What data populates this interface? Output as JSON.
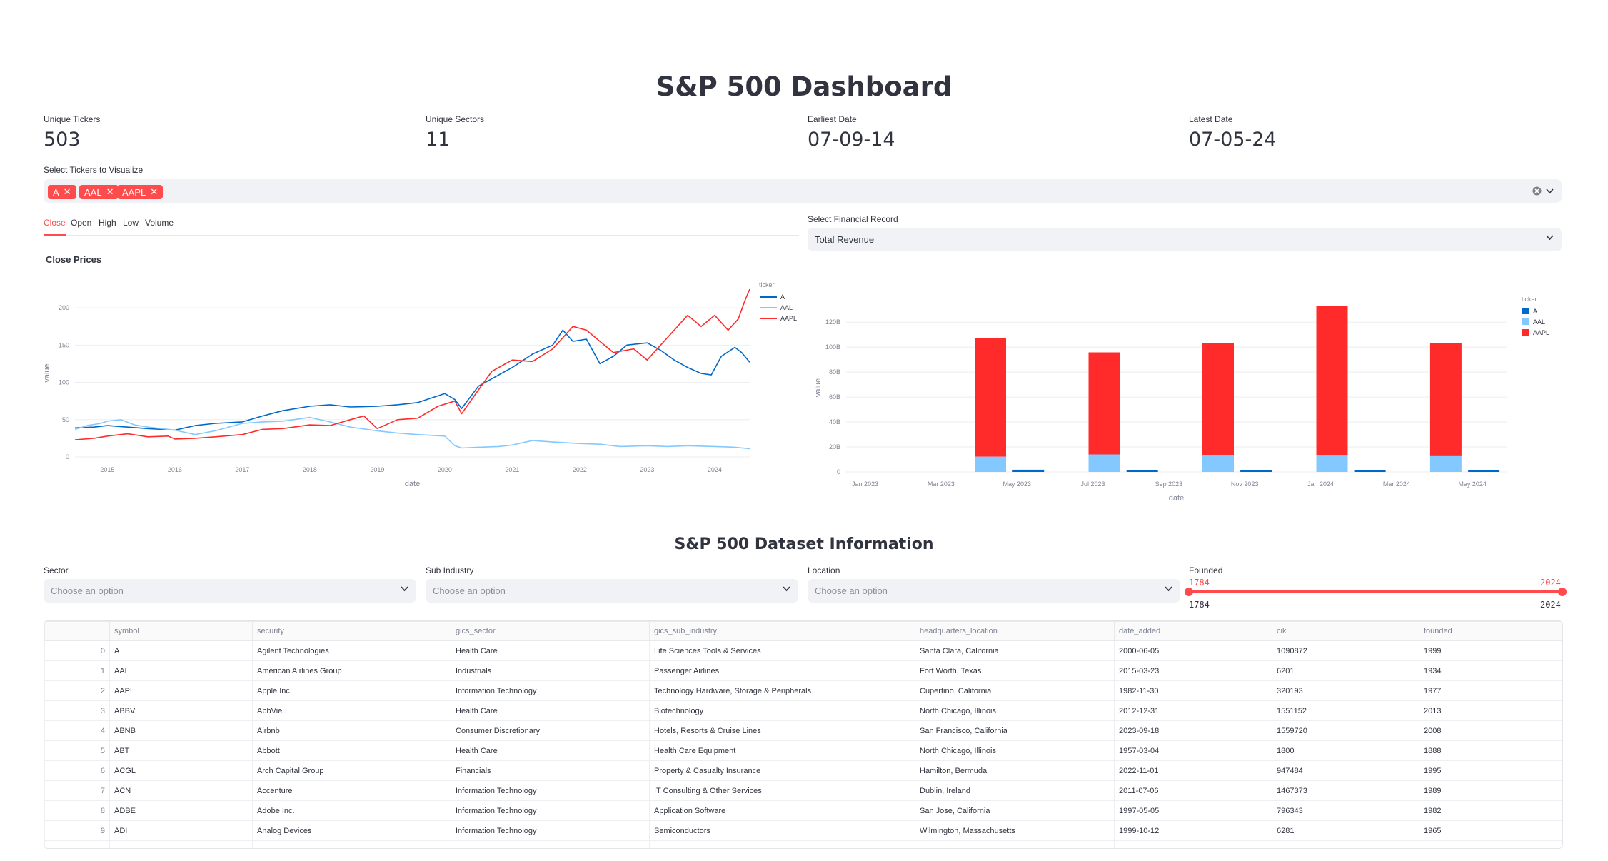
{
  "header": {
    "title": "S&P 500 Dashboard"
  },
  "metrics": [
    {
      "label": "Unique Tickers",
      "value": "503"
    },
    {
      "label": "Unique Sectors",
      "value": "11"
    },
    {
      "label": "Earliest Date",
      "value": "07-09-14"
    },
    {
      "label": "Latest Date",
      "value": "07-05-24"
    }
  ],
  "ticker_select": {
    "label": "Select Tickers to Visualize",
    "tags": [
      "A",
      "AAL",
      "AAPL"
    ]
  },
  "tabs": [
    "Close",
    "Open",
    "High",
    "Low",
    "Volume"
  ],
  "financial_select": {
    "label": "Select Financial Record",
    "value": "Total Revenue"
  },
  "colors": {
    "A": "#0068c9",
    "AAL": "#83c9ff",
    "AAPL": "#ff2b2b",
    "accent": "#ff4b4b"
  },
  "line_chart": {
    "title": "Close Prices",
    "legend_title": "ticker",
    "chart_data": {
      "type": "line",
      "title": "Close Prices",
      "xlabel": "date",
      "ylabel": "value",
      "x_ticks": [
        "2015",
        "2016",
        "2017",
        "2018",
        "2019",
        "2020",
        "2021",
        "2022",
        "2023",
        "2024"
      ],
      "y_ticks": [
        "0",
        "50",
        "100",
        "150",
        "200"
      ],
      "ylim": [
        0,
        225
      ],
      "xlim": [
        2014.52,
        2024.52
      ],
      "series": [
        {
          "name": "A",
          "x": [
            2014.52,
            2014.8,
            2015.0,
            2015.3,
            2015.6,
            2016.0,
            2016.3,
            2016.6,
            2017.0,
            2017.3,
            2017.6,
            2018.0,
            2018.3,
            2018.6,
            2019.0,
            2019.3,
            2019.6,
            2020.0,
            2020.15,
            2020.25,
            2020.5,
            2020.8,
            2021.0,
            2021.3,
            2021.6,
            2021.75,
            2021.9,
            2022.1,
            2022.3,
            2022.5,
            2022.7,
            2022.9,
            2023.0,
            2023.2,
            2023.4,
            2023.6,
            2023.8,
            2023.95,
            2024.1,
            2024.3,
            2024.4,
            2024.52
          ],
          "y": [
            39,
            40,
            42,
            40,
            38,
            36,
            42,
            45,
            47,
            55,
            62,
            68,
            70,
            67,
            68,
            70,
            73,
            85,
            77,
            65,
            95,
            110,
            120,
            138,
            150,
            170,
            155,
            158,
            125,
            135,
            150,
            152,
            153,
            143,
            130,
            120,
            112,
            110,
            135,
            147,
            140,
            127
          ]
        },
        {
          "name": "AAL",
          "x": [
            2014.52,
            2014.7,
            2014.9,
            2015.0,
            2015.2,
            2015.4,
            2015.6,
            2015.8,
            2016.0,
            2016.3,
            2016.6,
            2017.0,
            2017.3,
            2017.6,
            2018.0,
            2018.3,
            2018.6,
            2019.0,
            2019.3,
            2019.6,
            2020.0,
            2020.15,
            2020.25,
            2020.5,
            2020.8,
            2021.0,
            2021.3,
            2021.6,
            2022.0,
            2022.3,
            2022.6,
            2023.0,
            2023.3,
            2023.6,
            2024.0,
            2024.3,
            2024.52
          ],
          "y": [
            37,
            42,
            45,
            48,
            50,
            43,
            40,
            38,
            36,
            30,
            35,
            45,
            47,
            48,
            53,
            47,
            40,
            35,
            32,
            30,
            28,
            15,
            12,
            13,
            14,
            16,
            22,
            20,
            18,
            17,
            14,
            15,
            14,
            15,
            14,
            13,
            11
          ]
        },
        {
          "name": "AAPL",
          "x": [
            2014.52,
            2014.8,
            2015.0,
            2015.3,
            2015.6,
            2015.9,
            2016.0,
            2016.3,
            2016.6,
            2017.0,
            2017.3,
            2017.6,
            2018.0,
            2018.3,
            2018.6,
            2018.8,
            2019.0,
            2019.3,
            2019.6,
            2019.9,
            2020.15,
            2020.25,
            2020.5,
            2020.7,
            2021.0,
            2021.3,
            2021.6,
            2021.9,
            2022.1,
            2022.3,
            2022.5,
            2022.8,
            2023.0,
            2023.3,
            2023.6,
            2023.8,
            2024.0,
            2024.2,
            2024.35,
            2024.45,
            2024.52
          ],
          "y": [
            23,
            25,
            28,
            31,
            27,
            28,
            24,
            25,
            27,
            30,
            37,
            38,
            43,
            42,
            50,
            55,
            38,
            50,
            52,
            68,
            75,
            58,
            90,
            115,
            130,
            128,
            145,
            175,
            170,
            155,
            140,
            145,
            130,
            160,
            190,
            175,
            190,
            170,
            185,
            210,
            225
          ]
        }
      ]
    }
  },
  "bar_chart": {
    "legend_title": "ticker",
    "chart_data": {
      "type": "bar",
      "xlabel": "date",
      "ylabel": "value",
      "x_ticks": [
        "Jan 2023",
        "Mar 2023",
        "May 2023",
        "Jul 2023",
        "Sep 2023",
        "Nov 2023",
        "Jan 2024",
        "Mar 2024",
        "May 2024"
      ],
      "y_ticks": [
        "0",
        "20B",
        "40B",
        "60B",
        "80B",
        "100B",
        "120B"
      ],
      "ylim": [
        0,
        135
      ],
      "unit": "B",
      "stacked": true,
      "groups": [
        {
          "date": "Apr 2023",
          "stack": [
            {
              "ticker": "AAL",
              "value": 12.2
            },
            {
              "ticker": "AAPL",
              "value": 94.8
            }
          ]
        },
        {
          "date": "May 2023",
          "stack": [
            {
              "ticker": "A",
              "value": 1.8
            }
          ]
        },
        {
          "date": "Jul 2023",
          "stack": [
            {
              "ticker": "AAL",
              "value": 14.0
            },
            {
              "ticker": "AAPL",
              "value": 81.8
            }
          ]
        },
        {
          "date": "Aug 2023",
          "stack": [
            {
              "ticker": "A",
              "value": 1.7
            }
          ]
        },
        {
          "date": "Oct 2023",
          "stack": [
            {
              "ticker": "AAL",
              "value": 13.5
            },
            {
              "ticker": "AAPL",
              "value": 89.5
            }
          ]
        },
        {
          "date": "Nov 2023",
          "stack": [
            {
              "ticker": "A",
              "value": 1.7
            }
          ]
        },
        {
          "date": "Jan 2024",
          "stack": [
            {
              "ticker": "AAL",
              "value": 13.1
            },
            {
              "ticker": "AAPL",
              "value": 119.6
            }
          ]
        },
        {
          "date": "Feb 2024",
          "stack": [
            {
              "ticker": "A",
              "value": 1.7
            }
          ]
        },
        {
          "date": "Apr 2024",
          "stack": [
            {
              "ticker": "AAL",
              "value": 12.6
            },
            {
              "ticker": "AAPL",
              "value": 90.8
            }
          ]
        },
        {
          "date": "May 2024",
          "stack": [
            {
              "ticker": "A",
              "value": 1.6
            }
          ]
        }
      ]
    }
  },
  "legend": [
    "A",
    "AAL",
    "AAPL"
  ],
  "dataset_section": {
    "title": "S&P 500 Dataset Information",
    "filters": [
      {
        "label": "Sector",
        "placeholder": "Choose an option"
      },
      {
        "label": "Sub Industry",
        "placeholder": "Choose an option"
      },
      {
        "label": "Location",
        "placeholder": "Choose an option"
      }
    ],
    "founded_slider": {
      "label": "Founded",
      "min": "1784",
      "max": "2024",
      "value_low": "1784",
      "value_high": "2024",
      "low_fraction": 0,
      "high_fraction": 1
    }
  },
  "table": {
    "columns": [
      "",
      "symbol",
      "security",
      "gics_sector",
      "gics_sub_industry",
      "headquarters_location",
      "date_added",
      "cik",
      "founded"
    ],
    "rows": [
      [
        "0",
        "A",
        "Agilent Technologies",
        "Health Care",
        "Life Sciences Tools & Services",
        "Santa Clara, California",
        "2000-06-05",
        "1090872",
        "1999"
      ],
      [
        "1",
        "AAL",
        "American Airlines Group",
        "Industrials",
        "Passenger Airlines",
        "Fort Worth, Texas",
        "2015-03-23",
        "6201",
        "1934"
      ],
      [
        "2",
        "AAPL",
        "Apple Inc.",
        "Information Technology",
        "Technology Hardware, Storage & Peripherals",
        "Cupertino, California",
        "1982-11-30",
        "320193",
        "1977"
      ],
      [
        "3",
        "ABBV",
        "AbbVie",
        "Health Care",
        "Biotechnology",
        "North Chicago, Illinois",
        "2012-12-31",
        "1551152",
        "2013"
      ],
      [
        "4",
        "ABNB",
        "Airbnb",
        "Consumer Discretionary",
        "Hotels, Resorts & Cruise Lines",
        "San Francisco, California",
        "2023-09-18",
        "1559720",
        "2008"
      ],
      [
        "5",
        "ABT",
        "Abbott",
        "Health Care",
        "Health Care Equipment",
        "North Chicago, Illinois",
        "1957-03-04",
        "1800",
        "1888"
      ],
      [
        "6",
        "ACGL",
        "Arch Capital Group",
        "Financials",
        "Property & Casualty Insurance",
        "Hamilton, Bermuda",
        "2022-11-01",
        "947484",
        "1995"
      ],
      [
        "7",
        "ACN",
        "Accenture",
        "Information Technology",
        "IT Consulting & Other Services",
        "Dublin, Ireland",
        "2011-07-06",
        "1467373",
        "1989"
      ],
      [
        "8",
        "ADBE",
        "Adobe Inc.",
        "Information Technology",
        "Application Software",
        "San Jose, California",
        "1997-05-05",
        "796343",
        "1982"
      ],
      [
        "9",
        "ADI",
        "Analog Devices",
        "Information Technology",
        "Semiconductors",
        "Wilmington, Massachusetts",
        "1999-10-12",
        "6281",
        "1965"
      ]
    ]
  }
}
